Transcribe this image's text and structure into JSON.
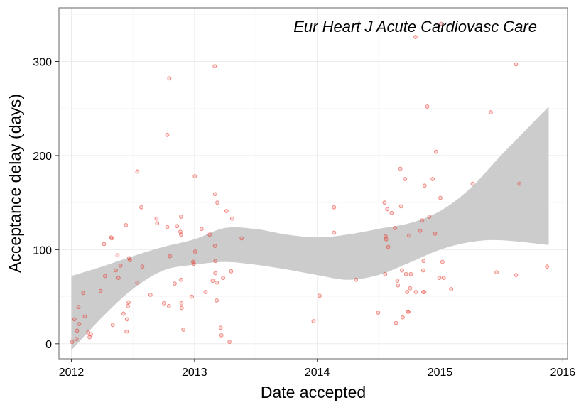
{
  "chart_data": {
    "type": "scatter",
    "annotation": "Eur Heart J Acute Cardiovasc Care",
    "xlabel": "Date accepted",
    "ylabel": "Acceptance delay (days)",
    "xlim": [
      "2011-11-25",
      "2016-01-15"
    ],
    "ylim": [
      -16,
      357
    ],
    "x_ticks": [
      "2012",
      "2013",
      "2014",
      "2015",
      "2016"
    ],
    "y_ticks": [
      0,
      100,
      200,
      300
    ],
    "grid": true,
    "colors": {
      "points": "#e8342a",
      "ribbon": "#cccccc",
      "grid": "#ebebeb",
      "border": "#7f7f7f"
    },
    "points": [
      {
        "x": "2012-01-03",
        "y": 2
      },
      {
        "x": "2012-01-10",
        "y": 26
      },
      {
        "x": "2012-01-16",
        "y": 5
      },
      {
        "x": "2012-01-18",
        "y": 14
      },
      {
        "x": "2012-01-22",
        "y": 39
      },
      {
        "x": "2012-01-24",
        "y": 21
      },
      {
        "x": "2012-02-05",
        "y": 54
      },
      {
        "x": "2012-02-10",
        "y": 29
      },
      {
        "x": "2012-02-20",
        "y": 12
      },
      {
        "x": "2012-02-24",
        "y": 7
      },
      {
        "x": "2012-02-28",
        "y": 10
      },
      {
        "x": "2012-03-28",
        "y": 56
      },
      {
        "x": "2012-04-07",
        "y": 106
      },
      {
        "x": "2012-04-10",
        "y": 72
      },
      {
        "x": "2012-04-28",
        "y": 113
      },
      {
        "x": "2012-04-30",
        "y": 112
      },
      {
        "x": "2012-05-03",
        "y": 20
      },
      {
        "x": "2012-05-12",
        "y": 78
      },
      {
        "x": "2012-05-17",
        "y": 94
      },
      {
        "x": "2012-05-20",
        "y": 70
      },
      {
        "x": "2012-05-26",
        "y": 83
      },
      {
        "x": "2012-06-04",
        "y": 32
      },
      {
        "x": "2012-06-11",
        "y": 126
      },
      {
        "x": "2012-06-13",
        "y": 13
      },
      {
        "x": "2012-06-14",
        "y": 26
      },
      {
        "x": "2012-06-17",
        "y": 40
      },
      {
        "x": "2012-06-19",
        "y": 44
      },
      {
        "x": "2012-06-21",
        "y": 91
      },
      {
        "x": "2012-06-23",
        "y": 89
      },
      {
        "x": "2012-07-15",
        "y": 183
      },
      {
        "x": "2012-07-15",
        "y": 65
      },
      {
        "x": "2012-07-30",
        "y": 82
      },
      {
        "x": "2012-07-27",
        "y": 145
      },
      {
        "x": "2012-08-23",
        "y": 52
      },
      {
        "x": "2012-09-10",
        "y": 133
      },
      {
        "x": "2012-09-12",
        "y": 128
      },
      {
        "x": "2012-10-02",
        "y": 43
      },
      {
        "x": "2012-10-12",
        "y": 124
      },
      {
        "x": "2012-10-12",
        "y": 222
      },
      {
        "x": "2012-10-17",
        "y": 40
      },
      {
        "x": "2012-10-18",
        "y": 282
      },
      {
        "x": "2012-10-20",
        "y": 93
      },
      {
        "x": "2012-11-03",
        "y": 64
      },
      {
        "x": "2012-11-10",
        "y": 125
      },
      {
        "x": "2012-11-20",
        "y": 119
      },
      {
        "x": "2012-11-22",
        "y": 116
      },
      {
        "x": "2012-11-22",
        "y": 68
      },
      {
        "x": "2012-11-22",
        "y": 135
      },
      {
        "x": "2012-11-23",
        "y": 43
      },
      {
        "x": "2012-11-24",
        "y": 38
      },
      {
        "x": "2012-11-29",
        "y": 15
      },
      {
        "x": "2012-12-24",
        "y": 50
      },
      {
        "x": "2012-12-28",
        "y": 87
      },
      {
        "x": "2012-12-30",
        "y": 85
      },
      {
        "x": "2013-01-02",
        "y": 178
      },
      {
        "x": "2013-01-03",
        "y": 98
      },
      {
        "x": "2013-01-22",
        "y": 122
      },
      {
        "x": "2013-02-03",
        "y": 55
      },
      {
        "x": "2013-02-15",
        "y": 116
      },
      {
        "x": "2013-02-24",
        "y": 67
      },
      {
        "x": "2013-03-02",
        "y": 295
      },
      {
        "x": "2013-03-03",
        "y": 159
      },
      {
        "x": "2013-03-03",
        "y": 104
      },
      {
        "x": "2013-03-04",
        "y": 88
      },
      {
        "x": "2013-03-04",
        "y": 75
      },
      {
        "x": "2013-03-08",
        "y": 65
      },
      {
        "x": "2013-03-08",
        "y": 46
      },
      {
        "x": "2013-03-10",
        "y": 150
      },
      {
        "x": "2013-03-20",
        "y": 17
      },
      {
        "x": "2013-03-22",
        "y": 9
      },
      {
        "x": "2013-03-27",
        "y": 70
      },
      {
        "x": "2013-04-06",
        "y": 141
      },
      {
        "x": "2013-04-15",
        "y": 2
      },
      {
        "x": "2013-04-20",
        "y": 77
      },
      {
        "x": "2013-04-23",
        "y": 133
      },
      {
        "x": "2013-05-21",
        "y": 112
      },
      {
        "x": "2013-12-21",
        "y": 24
      },
      {
        "x": "2014-01-08",
        "y": 51
      },
      {
        "x": "2014-02-20",
        "y": 118
      },
      {
        "x": "2014-02-20",
        "y": 145
      },
      {
        "x": "2014-04-26",
        "y": 68
      },
      {
        "x": "2014-07-01",
        "y": 33
      },
      {
        "x": "2014-07-20",
        "y": 150
      },
      {
        "x": "2014-07-22",
        "y": 74
      },
      {
        "x": "2014-07-23",
        "y": 114
      },
      {
        "x": "2014-07-25",
        "y": 111
      },
      {
        "x": "2014-07-28",
        "y": 143
      },
      {
        "x": "2014-07-31",
        "y": 103
      },
      {
        "x": "2014-08-10",
        "y": 139
      },
      {
        "x": "2014-08-20",
        "y": 123
      },
      {
        "x": "2014-08-23",
        "y": 22
      },
      {
        "x": "2014-08-27",
        "y": 67
      },
      {
        "x": "2014-08-29",
        "y": 62
      },
      {
        "x": "2014-09-05",
        "y": 186
      },
      {
        "x": "2014-09-07",
        "y": 146
      },
      {
        "x": "2014-09-10",
        "y": 78
      },
      {
        "x": "2014-09-12",
        "y": 28
      },
      {
        "x": "2014-09-19",
        "y": 175
      },
      {
        "x": "2014-09-22",
        "y": 74
      },
      {
        "x": "2014-09-25",
        "y": 55
      },
      {
        "x": "2014-09-27",
        "y": 34
      },
      {
        "x": "2014-09-29",
        "y": 34
      },
      {
        "x": "2014-10-01",
        "y": 115
      },
      {
        "x": "2014-10-04",
        "y": 59
      },
      {
        "x": "2014-10-06",
        "y": 74
      },
      {
        "x": "2014-10-20",
        "y": 326
      },
      {
        "x": "2014-10-21",
        "y": 55
      },
      {
        "x": "2014-11-03",
        "y": 120
      },
      {
        "x": "2014-11-09",
        "y": 131
      },
      {
        "x": "2014-11-12",
        "y": 55
      },
      {
        "x": "2014-11-12",
        "y": 78
      },
      {
        "x": "2014-11-13",
        "y": 88
      },
      {
        "x": "2014-11-15",
        "y": 55
      },
      {
        "x": "2014-11-16",
        "y": 168
      },
      {
        "x": "2014-11-24",
        "y": 252
      },
      {
        "x": "2014-11-30",
        "y": 135
      },
      {
        "x": "2014-12-10",
        "y": 175
      },
      {
        "x": "2014-12-17",
        "y": 117
      },
      {
        "x": "2014-12-20",
        "y": 204
      },
      {
        "x": "2014-12-30",
        "y": 70
      },
      {
        "x": "2015-01-02",
        "y": 155
      },
      {
        "x": "2015-01-04",
        "y": 340
      },
      {
        "x": "2015-01-08",
        "y": 87
      },
      {
        "x": "2015-01-12",
        "y": 70
      },
      {
        "x": "2015-02-03",
        "y": 58
      },
      {
        "x": "2015-04-08",
        "y": 170
      },
      {
        "x": "2015-06-01",
        "y": 246
      },
      {
        "x": "2015-06-18",
        "y": 76
      },
      {
        "x": "2015-08-15",
        "y": 297
      },
      {
        "x": "2015-08-15",
        "y": 73
      },
      {
        "x": "2015-08-25",
        "y": 170
      },
      {
        "x": "2015-11-15",
        "y": 82
      }
    ],
    "smooth_ribbon": [
      {
        "x": "2012-01-01",
        "lo": -7,
        "hi": 72
      },
      {
        "x": "2012-04-01",
        "lo": 28,
        "hi": 82
      },
      {
        "x": "2012-07-01",
        "lo": 58,
        "hi": 93
      },
      {
        "x": "2012-10-01",
        "lo": 78,
        "hi": 103
      },
      {
        "x": "2013-01-01",
        "lo": 84,
        "hi": 111
      },
      {
        "x": "2013-04-01",
        "lo": 87,
        "hi": 123
      },
      {
        "x": "2013-07-01",
        "lo": 84,
        "hi": 122
      },
      {
        "x": "2013-10-01",
        "lo": 79,
        "hi": 116
      },
      {
        "x": "2014-01-01",
        "lo": 73,
        "hi": 113
      },
      {
        "x": "2014-04-01",
        "lo": 68,
        "hi": 116
      },
      {
        "x": "2014-07-01",
        "lo": 73,
        "hi": 122
      },
      {
        "x": "2014-10-01",
        "lo": 86,
        "hi": 128
      },
      {
        "x": "2015-01-01",
        "lo": 100,
        "hi": 141
      },
      {
        "x": "2015-04-01",
        "lo": 108,
        "hi": 165
      },
      {
        "x": "2015-07-01",
        "lo": 110,
        "hi": 200
      },
      {
        "x": "2015-11-20",
        "lo": 105,
        "hi": 252
      }
    ]
  }
}
